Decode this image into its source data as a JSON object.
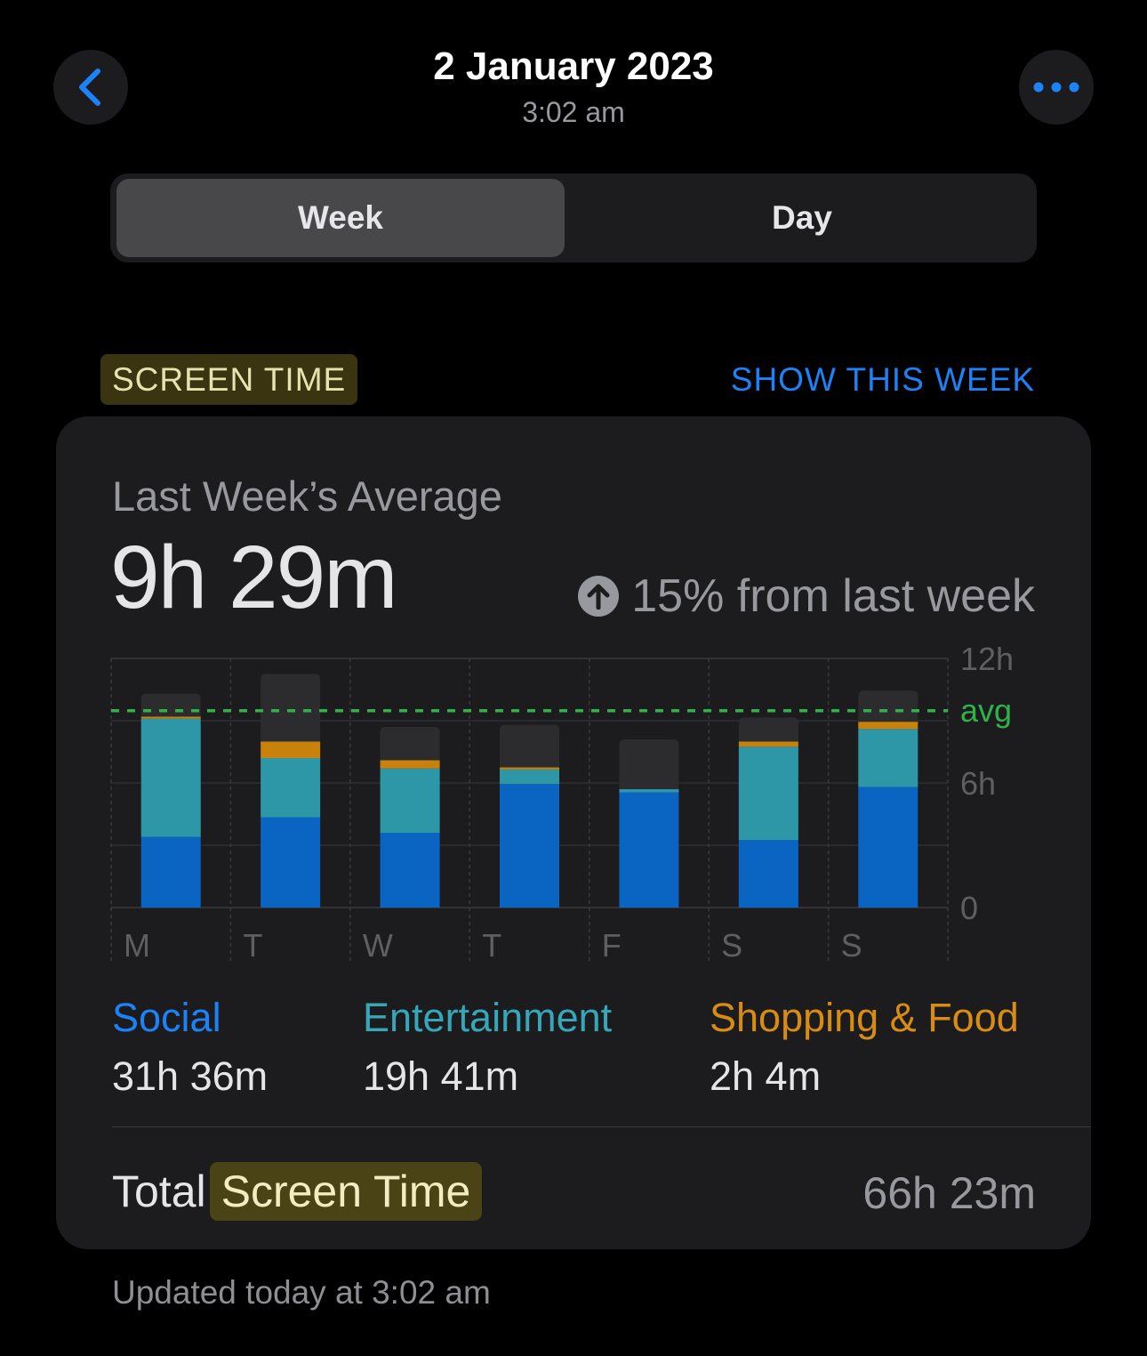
{
  "header": {
    "title": "2 January 2023",
    "subtitle": "3:02 am",
    "back_icon": "chevron-left-icon",
    "more_icon": "ellipsis-icon"
  },
  "segments": {
    "week": "Week",
    "day": "Day",
    "selected": "Week"
  },
  "section": {
    "label": "SCREEN TIME",
    "link": "SHOW THIS WEEK"
  },
  "card": {
    "subtitle": "Last Week’s Average",
    "average": "9h 29m",
    "change_text": "15% from last week",
    "change_icon": "arrow-up-circle-icon",
    "total_label": "Total",
    "total_highlight": "Screen Time",
    "total_value": "66h 23m"
  },
  "legend": [
    {
      "name": "Social",
      "value": "31h 36m",
      "color": "#0a64c2"
    },
    {
      "name": "Entertainment",
      "value": "19h 41m",
      "color": "#2e97a7"
    },
    {
      "name": "Shopping & Food",
      "value": "2h 4m",
      "color": "#c8820c"
    }
  ],
  "colors": {
    "accent_link": "#1c82f7",
    "other": "#2c2c2e",
    "avg_line": "#30b14a",
    "highlight_bg": "#3a3411"
  },
  "chart_data": {
    "type": "bar",
    "stacked": true,
    "categories": [
      "M",
      "T",
      "W",
      "T",
      "F",
      "S",
      "S"
    ],
    "y_ticks": [
      "0",
      "6h",
      "12h"
    ],
    "ylim": [
      0,
      12
    ],
    "avg_label": "avg",
    "avg_value": 9.48,
    "series": [
      {
        "name": "Social",
        "values": [
          3.4,
          4.35,
          3.6,
          5.95,
          5.55,
          3.25,
          5.8
        ]
      },
      {
        "name": "Entertainment",
        "values": [
          5.7,
          2.85,
          3.1,
          0.7,
          0.15,
          4.5,
          2.8
        ]
      },
      {
        "name": "Shopping & Food",
        "values": [
          0.1,
          0.8,
          0.4,
          0.1,
          0,
          0.25,
          0.35
        ]
      },
      {
        "name": "Other",
        "values": [
          1.1,
          3.25,
          1.6,
          2.05,
          2.4,
          1.15,
          1.5
        ]
      }
    ],
    "grid": true
  },
  "footer": {
    "updated": "Updated today at 3:02 am"
  }
}
